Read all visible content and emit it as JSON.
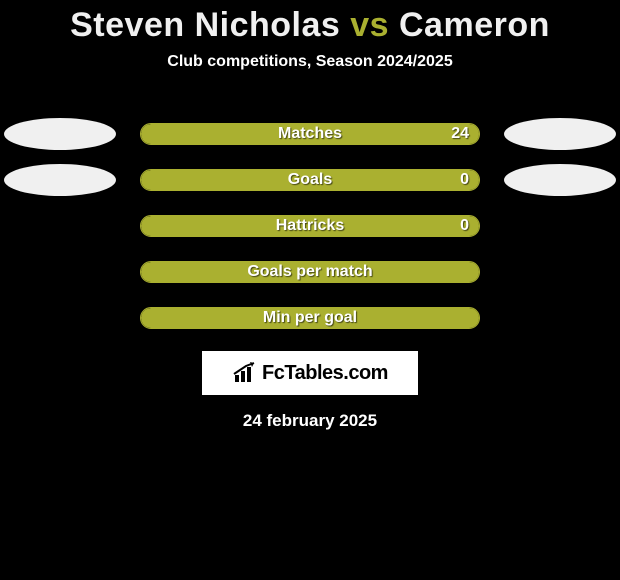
{
  "title_parts": {
    "player1": "Steven Nicholas",
    "vs": " vs ",
    "player2": "Cameron"
  },
  "title_colors": {
    "player1": "#f0f0f0",
    "vs": "#aab030",
    "player2": "#f0f0f0"
  },
  "subtitle": "Club competitions, Season 2024/2025",
  "stats": [
    {
      "label": "Matches",
      "value": "24",
      "fill_pct": 100,
      "show_ellipses": true,
      "show_value": true
    },
    {
      "label": "Goals",
      "value": "0",
      "fill_pct": 100,
      "show_ellipses": true,
      "show_value": true
    },
    {
      "label": "Hattricks",
      "value": "0",
      "fill_pct": 100,
      "show_ellipses": false,
      "show_value": true
    },
    {
      "label": "Goals per match",
      "value": "",
      "fill_pct": 100,
      "show_ellipses": false,
      "show_value": false
    },
    {
      "label": "Min per goal",
      "value": "",
      "fill_pct": 100,
      "show_ellipses": false,
      "show_value": false
    }
  ],
  "style": {
    "background_color": "#000000",
    "ellipse_left_color": "#f0f0f0",
    "ellipse_right_color": "#f0f0f0",
    "bar_outline_color": "#aab030",
    "bar_fill_color": "#aab030",
    "label_text_color": "#ffffff",
    "value_text_color": "#ffffff"
  },
  "logo": {
    "text": "FcTables.com",
    "text_color": "#000000",
    "box_bg": "#ffffff"
  },
  "date_text": "24 february 2025"
}
